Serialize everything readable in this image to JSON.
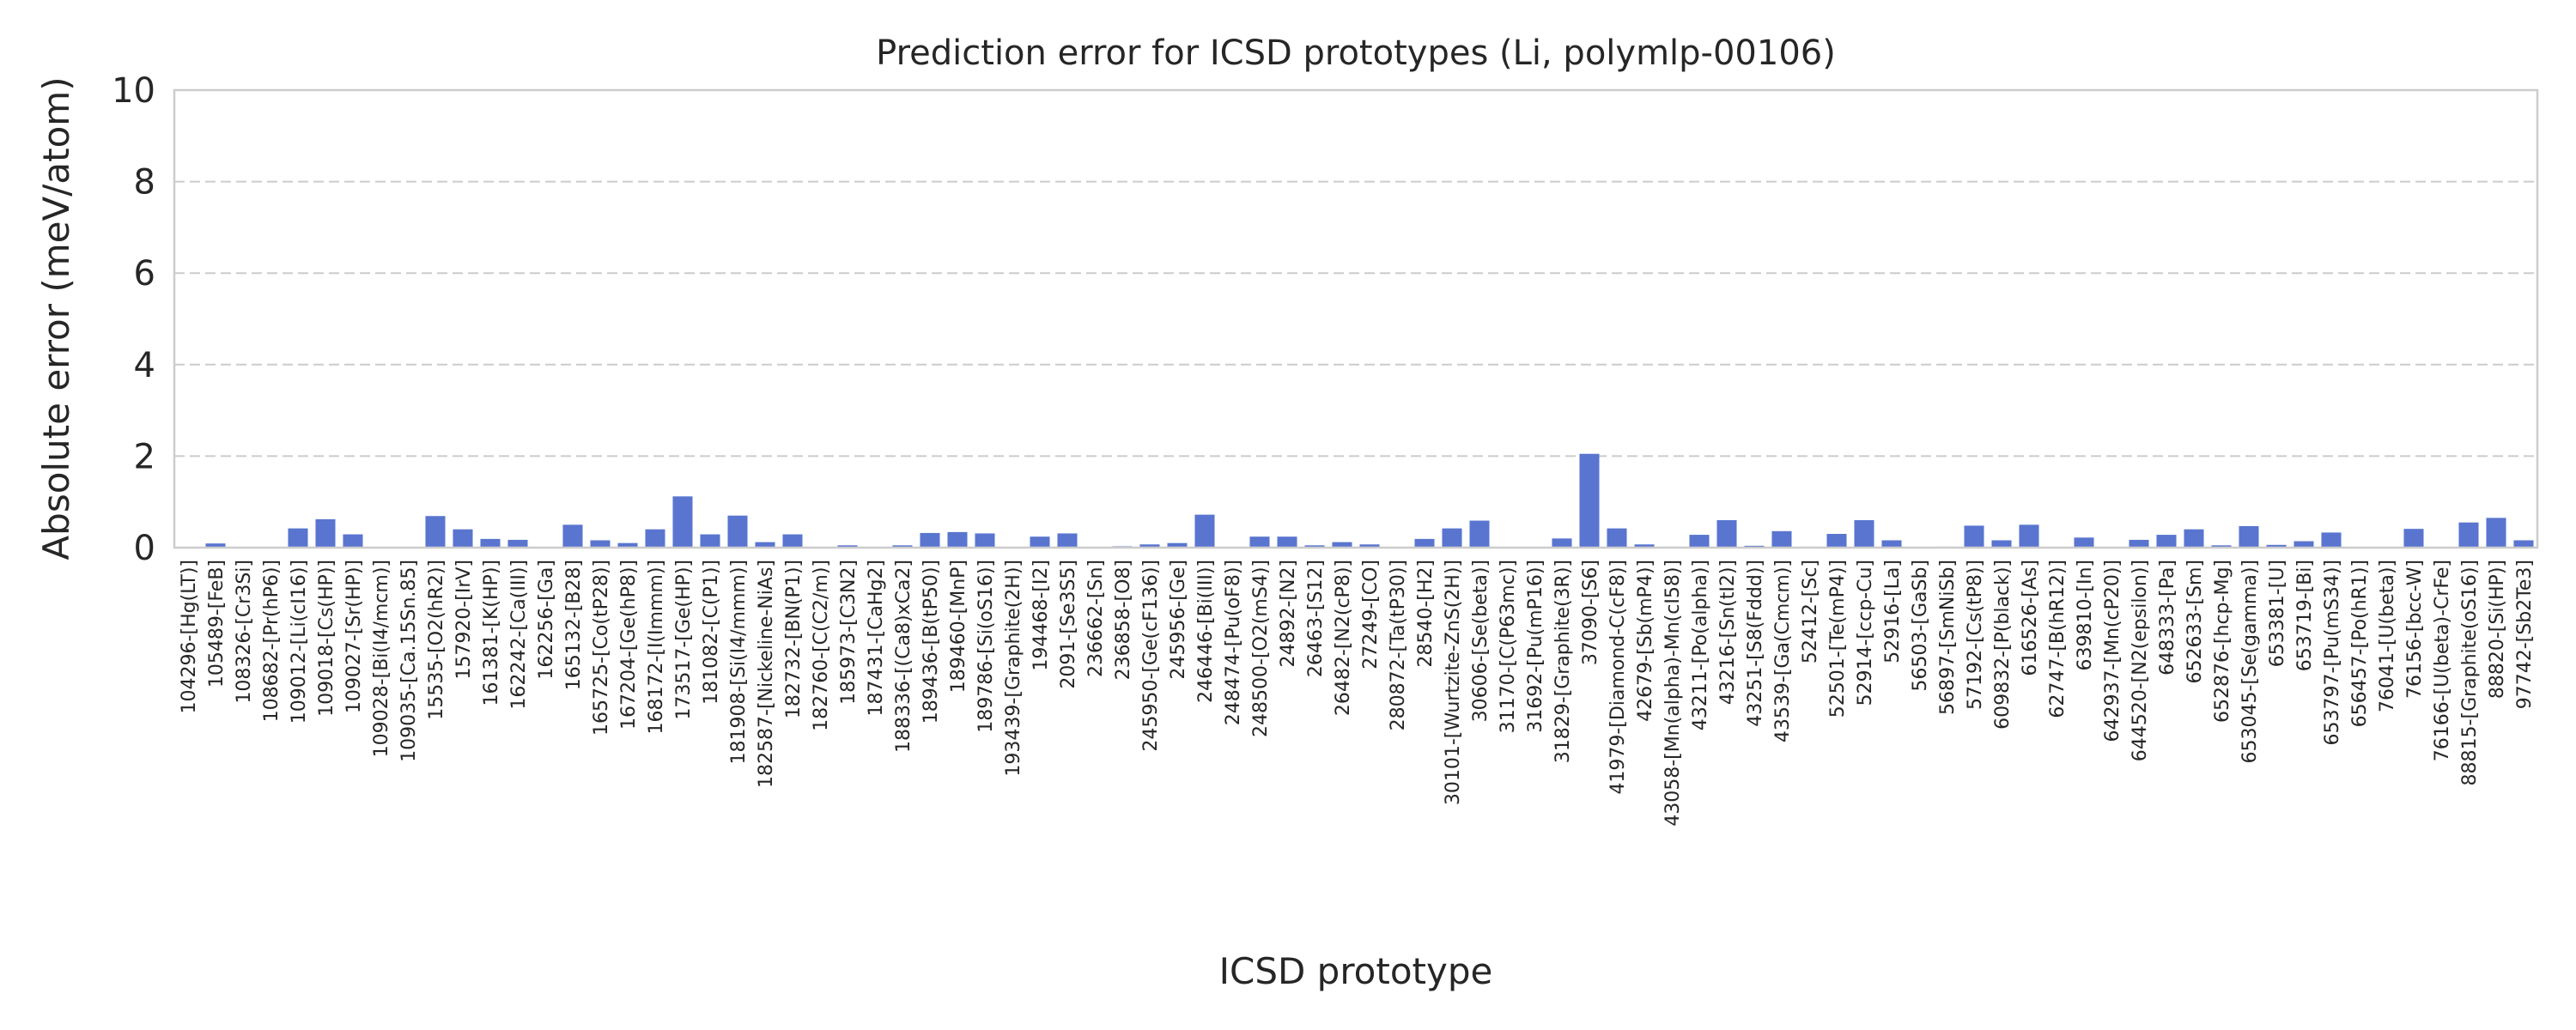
{
  "chart_data": {
    "type": "bar",
    "title": "Prediction error for ICSD prototypes (Li, polymlp-00106)",
    "xlabel": "ICSD prototype",
    "ylabel": "Absolute error (meV/atom)",
    "ylim": [
      0,
      10
    ],
    "yticks": [
      0,
      2,
      4,
      6,
      8,
      10
    ],
    "grid": "y-dashed",
    "bar_color": "#5975cf",
    "categories": [
      "104296-[Hg(LT)]",
      "105489-[FeB]",
      "108326-[Cr3Si]",
      "108682-[Pr(hP6)]",
      "109012-[Li(cI16)]",
      "109018-[Cs(HP)]",
      "109027-[Sr(HP)]",
      "109028-[Bi(I4/mcm)]",
      "109035-[Ca.15Sn.85]",
      "15535-[O2(hR2)]",
      "157920-[IrV]",
      "161381-[K(HP)]",
      "162242-[Ca(III)]",
      "162256-[Ga]",
      "165132-[B28]",
      "165725-[Co(tP28)]",
      "167204-[Ge(hP8)]",
      "168172-[I(Immm)]",
      "173517-[Ge(HP)]",
      "181082-[C(P1)]",
      "181908-[Si(I4/mmm)]",
      "182587-[Nickeline-NiAs]",
      "182732-[BN(P1)]",
      "182760-[C(C2/m)]",
      "185973-[C3N2]",
      "187431-[CaHg2]",
      "188336-[(Ca8)xCa2]",
      "189436-[B(tP50)]",
      "189460-[MnP]",
      "189786-[Si(oS16)]",
      "193439-[Graphite(2H)]",
      "194468-[I2]",
      "2091-[Se3S5]",
      "236662-[Sn]",
      "236858-[O8]",
      "245950-[Ge(cF136)]",
      "245956-[Ge]",
      "246446-[Bi(III)]",
      "248474-[Pu(oF8)]",
      "248500-[O2(mS4)]",
      "24892-[N2]",
      "26463-[S12]",
      "26482-[N2(cP8)]",
      "27249-[CO]",
      "280872-[Ta(tP30)]",
      "28540-[H2]",
      "30101-[Wurtzite-ZnS(2H)]",
      "30606-[Se(beta)]",
      "31170-[C(P63mc)]",
      "31692-[Pu(mP16)]",
      "31829-[Graphite(3R)]",
      "37090-[S6]",
      "41979-[Diamond-C(cF8)]",
      "42679-[Sb(mP4)]",
      "43058-[Mn(alpha)-Mn(cI58)]",
      "43211-[Po(alpha)]",
      "43216-[Sn(tI2)]",
      "43251-[S8(Fddd)]",
      "43539-[Ga(Cmcm)]",
      "52412-[Sc]",
      "52501-[Te(mP4)]",
      "52914-[ccp-Cu]",
      "52916-[La]",
      "56503-[GaSb]",
      "56897-[SmNiSb]",
      "57192-[Cs(tP8)]",
      "609832-[P(black)]",
      "616526-[As]",
      "62747-[B(hR12)]",
      "639810-[In]",
      "642937-[Mn(cP20)]",
      "644520-[N2(epsilon)]",
      "648333-[Pa]",
      "652633-[Sm]",
      "652876-[hcp-Mg]",
      "653045-[Se(gamma)]",
      "653381-[U]",
      "653719-[Bi]",
      "653797-[Pu(mS34)]",
      "656457-[Po(hR1)]",
      "76041-[U(beta)]",
      "76156-[bcc-W]",
      "76166-[U(beta)-CrFe]",
      "88815-[Graphite(oS16)]",
      "88820-[Si(HP)]",
      "97742-[Sb2Te3]"
    ],
    "values": [
      0,
      0.09,
      0,
      0,
      0.42,
      0.62,
      0.29,
      0,
      0,
      0.69,
      0.4,
      0.19,
      0.17,
      0,
      0.5,
      0.16,
      0.1,
      0.4,
      1.12,
      0.29,
      0.7,
      0.12,
      0.29,
      0,
      0.05,
      0,
      0.05,
      0.32,
      0.34,
      0.31,
      0,
      0.24,
      0.31,
      0,
      0.03,
      0.07,
      0.1,
      0.72,
      0,
      0.24,
      0.24,
      0.05,
      0.12,
      0.07,
      0,
      0.19,
      0.42,
      0.59,
      0,
      0,
      0.2,
      2.05,
      0.42,
      0.07,
      0.02,
      0.28,
      0.6,
      0.04,
      0.36,
      0.02,
      0.3,
      0.6,
      0.16,
      0,
      0.02,
      0.48,
      0.16,
      0.5,
      0,
      0.22,
      0,
      0.17,
      0.28,
      0.4,
      0.05,
      0.47,
      0.06,
      0.14,
      0.33,
      0,
      0,
      0.41,
      0,
      0.55,
      0.65,
      0.16
    ]
  }
}
